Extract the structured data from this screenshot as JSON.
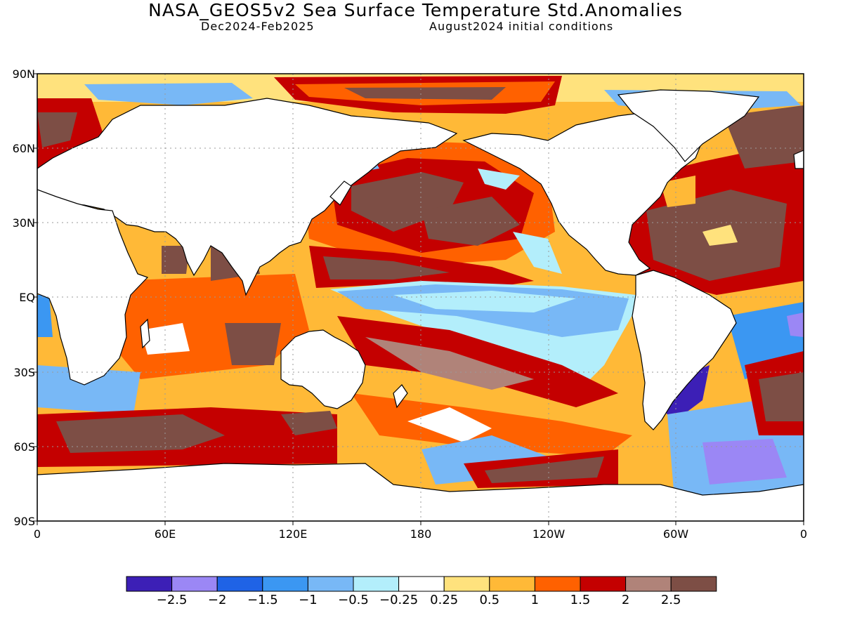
{
  "title": "NASA_GEOS5v2 Sea Surface Temperature Std.Anomalies",
  "period": "Dec2024-Feb2025",
  "init": "August2024 initial conditions",
  "lat_labels": [
    "90N",
    "60N",
    "30N",
    "EQ",
    "30S",
    "60S",
    "90S"
  ],
  "lon_labels": [
    "0",
    "60E",
    "120E",
    "180",
    "120W",
    "60W",
    "0"
  ],
  "colorbar": {
    "colors": [
      "#3c1fb6",
      "#9b87f5",
      "#1f63e6",
      "#3b97f2",
      "#78b8f6",
      "#b3eefb",
      "#ffffff",
      "#ffe27d",
      "#ffb937",
      "#ff6100",
      "#c40000",
      "#b08379",
      "#7d4e45"
    ],
    "labels": [
      "-2.5",
      "-2",
      "-1.5",
      "-1",
      "-0.5",
      "-0.25",
      "0.25",
      "0.5",
      "1",
      "1.5",
      "2",
      "2.5"
    ]
  }
}
